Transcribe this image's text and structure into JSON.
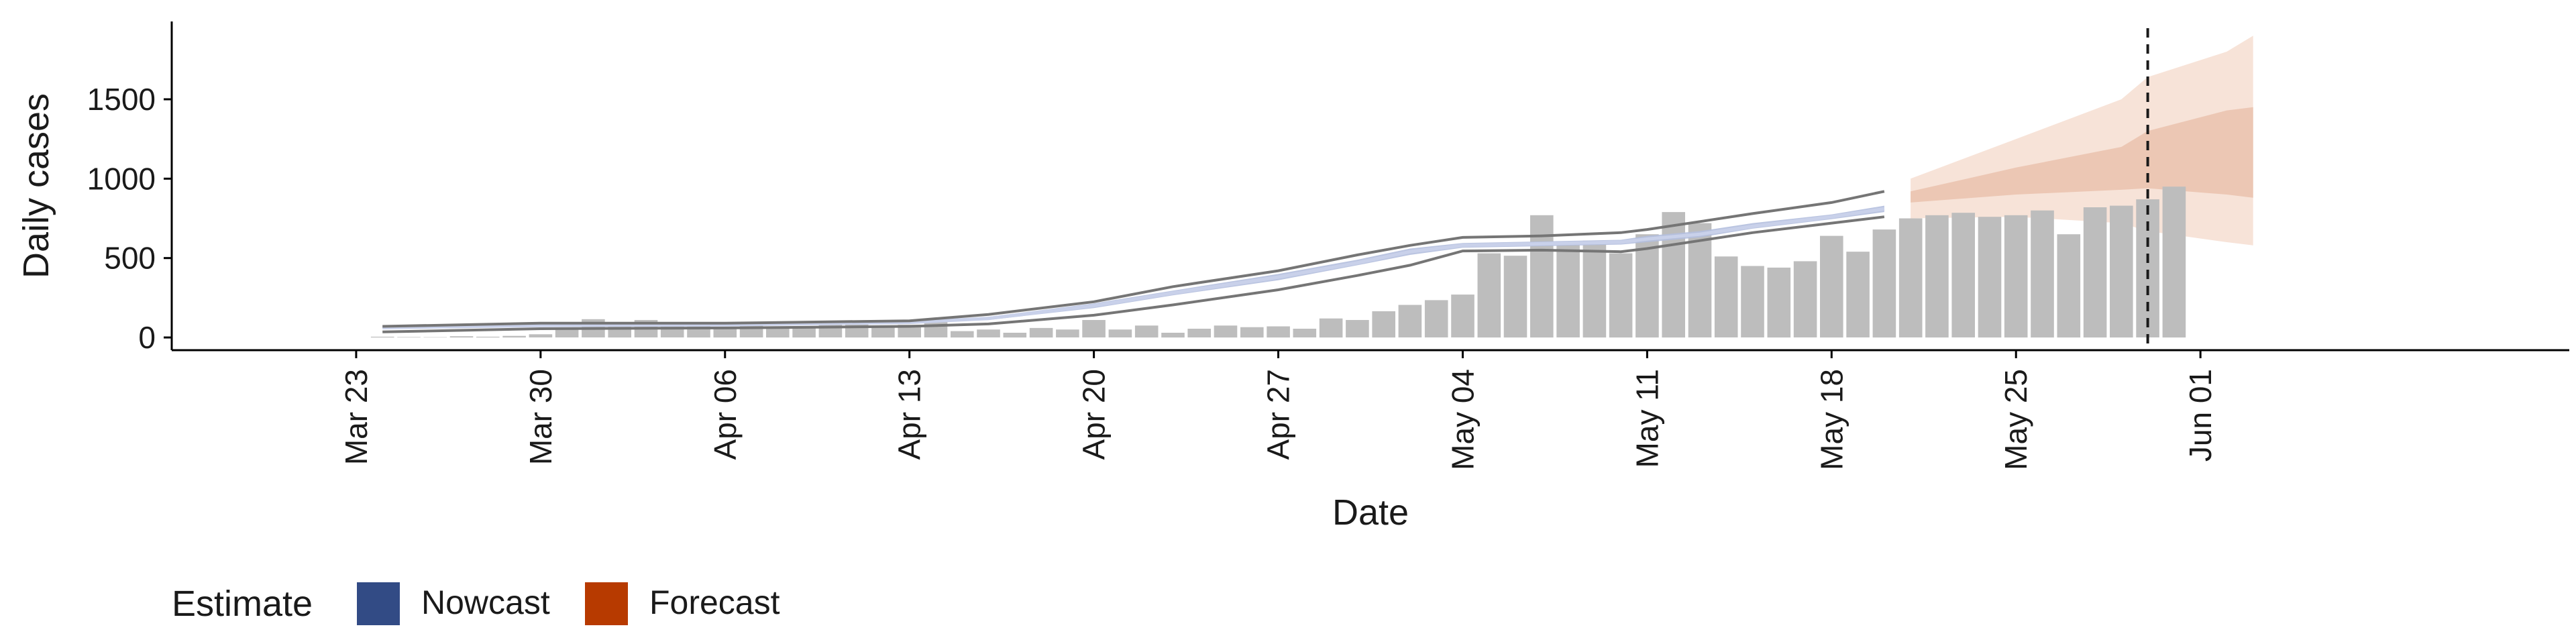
{
  "chart_data": {
    "type": "bar",
    "xlabel": "Date",
    "ylabel": "Daily cases",
    "ylim": [
      -80,
      1990
    ],
    "yticks": [
      0,
      500,
      1000,
      1500
    ],
    "xlim": [
      "2020-03-16",
      "2020-06-15"
    ],
    "xticks": [
      {
        "date": "2020-03-23",
        "label": "Mar 23"
      },
      {
        "date": "2020-03-30",
        "label": "Mar 30"
      },
      {
        "date": "2020-04-06",
        "label": "Apr 06"
      },
      {
        "date": "2020-04-13",
        "label": "Apr 13"
      },
      {
        "date": "2020-04-20",
        "label": "Apr 20"
      },
      {
        "date": "2020-04-27",
        "label": "Apr 27"
      },
      {
        "date": "2020-05-04",
        "label": "May 04"
      },
      {
        "date": "2020-05-11",
        "label": "May 11"
      },
      {
        "date": "2020-05-18",
        "label": "May 18"
      },
      {
        "date": "2020-05-25",
        "label": "May 25"
      },
      {
        "date": "2020-06-01",
        "label": "Jun 01"
      }
    ],
    "grid": false,
    "bars": {
      "color": "#bdbdbd",
      "start_date": "2020-03-24",
      "values": [
        5,
        3,
        2,
        8,
        5,
        10,
        20,
        55,
        115,
        75,
        110,
        80,
        90,
        65,
        80,
        60,
        70,
        80,
        90,
        75,
        80,
        110,
        40,
        50,
        30,
        60,
        50,
        110,
        50,
        75,
        30,
        55,
        75,
        65,
        70,
        55,
        120,
        110,
        165,
        205,
        235,
        270,
        530,
        515,
        770,
        600,
        610,
        530,
        650,
        790,
        720,
        510,
        450,
        440,
        480,
        640,
        540,
        680,
        750,
        770,
        785,
        760,
        770,
        800,
        650,
        820,
        830,
        870,
        950
      ]
    },
    "nowcast": {
      "dates": [
        "2020-03-24",
        "2020-03-30",
        "2020-04-06",
        "2020-04-13",
        "2020-04-16",
        "2020-04-20",
        "2020-04-23",
        "2020-04-27",
        "2020-04-30",
        "2020-05-02",
        "2020-05-04",
        "2020-05-07",
        "2020-05-10",
        "2020-05-11",
        "2020-05-13",
        "2020-05-15",
        "2020-05-18",
        "2020-05-20"
      ],
      "mid": [
        62,
        76,
        80,
        95,
        120,
        200,
        280,
        380,
        470,
        540,
        580,
        590,
        600,
        620,
        650,
        700,
        760,
        810
      ],
      "inner_low": [
        57,
        71,
        75,
        90,
        110,
        185,
        265,
        360,
        455,
        520,
        565,
        575,
        585,
        600,
        630,
        685,
        745,
        790
      ],
      "inner_high": [
        67,
        81,
        85,
        100,
        130,
        215,
        295,
        400,
        490,
        560,
        595,
        605,
        615,
        640,
        670,
        720,
        775,
        830
      ],
      "outer_low": [
        35,
        55,
        60,
        70,
        85,
        140,
        205,
        300,
        390,
        455,
        545,
        550,
        540,
        560,
        610,
        660,
        720,
        760
      ],
      "outer_high": [
        70,
        90,
        90,
        105,
        145,
        225,
        320,
        420,
        520,
        580,
        630,
        640,
        660,
        680,
        730,
        780,
        850,
        920
      ],
      "band_color": "#b4bfde",
      "line_color": "#757575"
    },
    "forecast": {
      "dates": [
        "2020-05-21",
        "2020-05-25",
        "2020-05-29",
        "2020-05-30",
        "2020-06-02",
        "2020-06-03"
      ],
      "inner_low": [
        850,
        900,
        930,
        940,
        900,
        880
      ],
      "inner_high": [
        920,
        1070,
        1200,
        1300,
        1430,
        1450
      ],
      "outer_low": [
        750,
        760,
        720,
        670,
        600,
        580
      ],
      "outer_high": [
        1000,
        1250,
        1500,
        1640,
        1800,
        1900
      ],
      "inner_color": "#ecc7b4",
      "outer_color": "#f7e3d8"
    },
    "vline_date": "2020-05-30",
    "legend": {
      "title": "Estimate",
      "position": "bottom-left",
      "items": [
        {
          "label": "Nowcast",
          "color": "#324b85"
        },
        {
          "label": "Forecast",
          "color": "#b73a00"
        }
      ]
    }
  }
}
